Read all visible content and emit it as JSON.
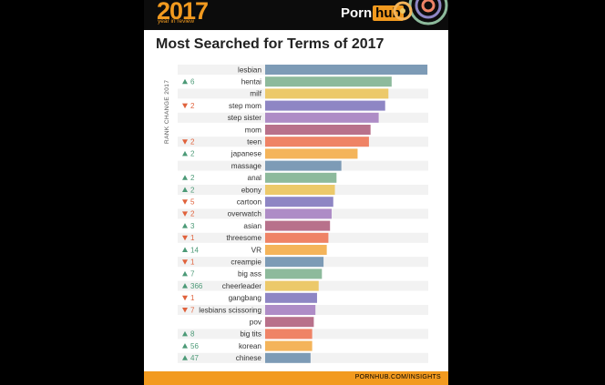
{
  "banner": {
    "year": "2017",
    "subtitle": "year in review",
    "brand_left": "Porn",
    "brand_right": "hub"
  },
  "chart_data": {
    "type": "bar",
    "orientation": "horizontal",
    "title": "Most Searched for Terms of 2017",
    "rank_change_label": "RANK CHANGE 2017",
    "categories": [
      "lesbian",
      "hentai",
      "milf",
      "step mom",
      "step sister",
      "mom",
      "teen",
      "japanese",
      "massage",
      "anal",
      "ebony",
      "cartoon",
      "overwatch",
      "asian",
      "threesome",
      "VR",
      "creampie",
      "big ass",
      "cheerleader",
      "gangbang",
      "lesbians scissoring",
      "pov",
      "big tits",
      "korean",
      "chinese"
    ],
    "values": [
      100,
      78,
      76,
      74,
      70,
      65,
      64,
      57,
      47,
      44,
      43,
      42,
      41,
      40,
      39,
      38,
      36,
      35,
      33,
      32,
      31,
      30,
      29,
      29,
      28
    ],
    "rank_change": [
      {
        "dir": "",
        "val": ""
      },
      {
        "dir": "up",
        "val": "6"
      },
      {
        "dir": "",
        "val": ""
      },
      {
        "dir": "down",
        "val": "2"
      },
      {
        "dir": "",
        "val": ""
      },
      {
        "dir": "",
        "val": ""
      },
      {
        "dir": "down",
        "val": "2"
      },
      {
        "dir": "up",
        "val": "2"
      },
      {
        "dir": "",
        "val": ""
      },
      {
        "dir": "up",
        "val": "2"
      },
      {
        "dir": "up",
        "val": "2"
      },
      {
        "dir": "down",
        "val": "5"
      },
      {
        "dir": "down",
        "val": "2"
      },
      {
        "dir": "up",
        "val": "3"
      },
      {
        "dir": "down",
        "val": "1"
      },
      {
        "dir": "up",
        "val": "14"
      },
      {
        "dir": "down",
        "val": "1"
      },
      {
        "dir": "up",
        "val": "7"
      },
      {
        "dir": "up",
        "val": "366"
      },
      {
        "dir": "down",
        "val": "1"
      },
      {
        "dir": "down",
        "val": "7"
      },
      {
        "dir": "",
        "val": ""
      },
      {
        "dir": "up",
        "val": "8"
      },
      {
        "dir": "up",
        "val": "56"
      },
      {
        "dir": "up",
        "val": "47"
      }
    ],
    "bar_colors": [
      "#7d9bb6",
      "#8dba9c",
      "#ecc96a",
      "#8e86c4",
      "#ae8cc6",
      "#b8718b",
      "#ef8366",
      "#f4b45a"
    ],
    "up_color": "#4c9a77",
    "down_color": "#e0623c"
  },
  "footer": {
    "text": "PORNHUB.COM/INSIGHTS"
  }
}
